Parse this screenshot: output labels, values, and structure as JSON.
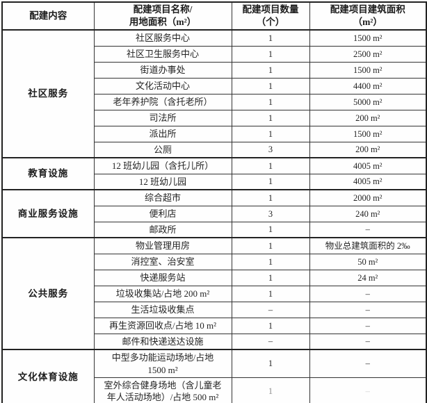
{
  "table": {
    "headers": [
      "配建内容",
      "配建项目名称/\n用地面积（m²）",
      "配建项目数量\n（个）",
      "配建项目建筑面积\n（m²）"
    ],
    "groups": [
      {
        "name": "社区服务",
        "rows": [
          [
            "社区服务中心",
            "1",
            "1500 m²"
          ],
          [
            "社区卫生服务中心",
            "1",
            "2500 m²"
          ],
          [
            "街道办事处",
            "1",
            "1500 m²"
          ],
          [
            "文化活动中心",
            "1",
            "4400 m²"
          ],
          [
            "老年养护院（含托老所）",
            "1",
            "5000 m²"
          ],
          [
            "司法所",
            "1",
            "200 m²"
          ],
          [
            "派出所",
            "1",
            "1500 m²"
          ],
          [
            "公厕",
            "3",
            "200 m²"
          ]
        ]
      },
      {
        "name": "教育设施",
        "rows": [
          [
            "12 班幼儿园（含托儿所）",
            "1",
            "4005 m²"
          ],
          [
            "12 班幼儿园",
            "1",
            "4005 m²"
          ]
        ]
      },
      {
        "name": "商业服务设施",
        "rows": [
          [
            "综合超市",
            "1",
            "2000 m²"
          ],
          [
            "便利店",
            "3",
            "240 m²"
          ],
          [
            "邮政所",
            "1",
            "–"
          ]
        ]
      },
      {
        "name": "公共服务",
        "rows": [
          [
            "物业管理用房",
            "1",
            "物业总建筑面积的 2‰"
          ],
          [
            "消控室、治安室",
            "1",
            "50 m²"
          ],
          [
            "快递服务站",
            "1",
            "24 m²"
          ],
          [
            "垃圾收集站/占地 200 m²",
            "1",
            "–"
          ],
          [
            "生活垃圾收集点",
            "–",
            "–"
          ],
          [
            "再生资源回收点/占地 10 m²",
            "1",
            "–"
          ],
          [
            "邮件和快递送达设施",
            "–",
            "–"
          ]
        ]
      },
      {
        "name": "文化体育设施",
        "rows": [
          [
            "中型多功能运动场地/占地\n1500 m²",
            "1",
            "–"
          ],
          [
            "室外综合健身场地（含儿童老\n年人活动场地）/占地 500 m²",
            "1",
            "–"
          ]
        ]
      }
    ]
  }
}
